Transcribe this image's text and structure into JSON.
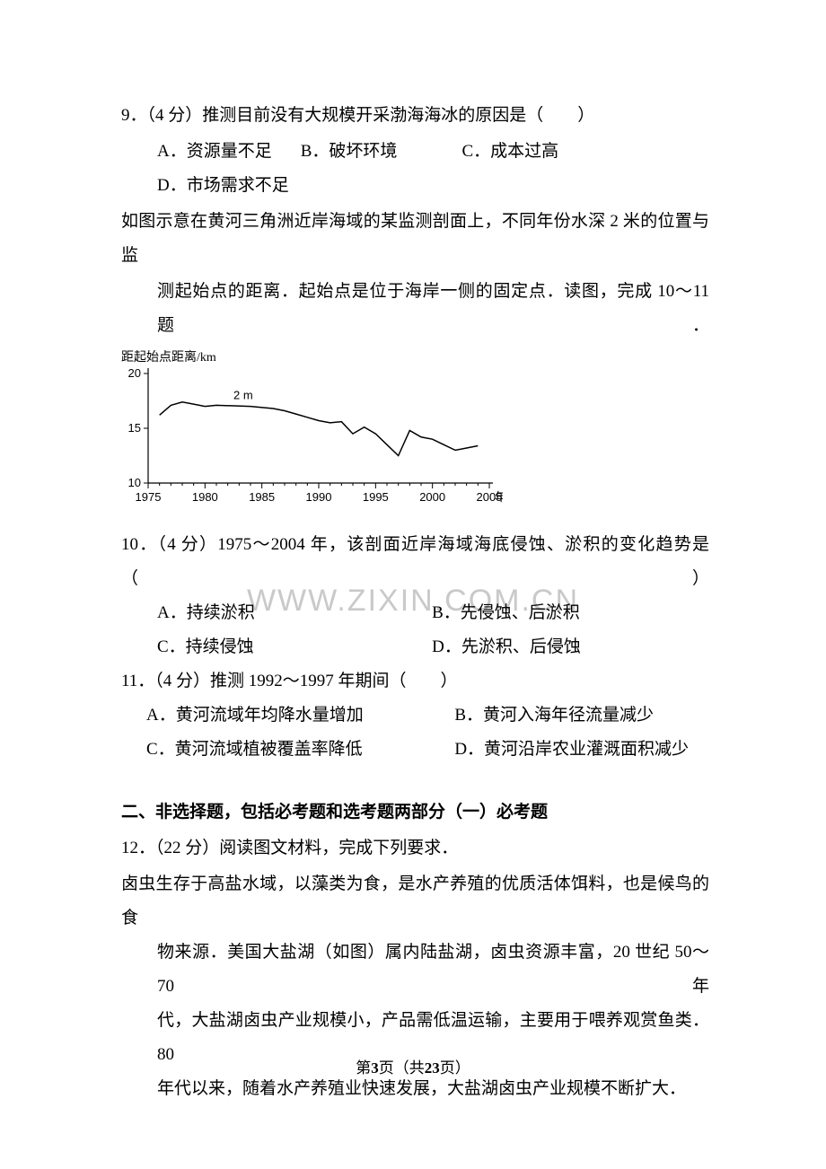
{
  "q9": {
    "stem": "9．（4 分）推测目前没有大规模开采渤海海冰的原因是（　　）",
    "opts": {
      "A": "A．资源量不足",
      "B": "B．破坏环境",
      "C": "C．成本过高",
      "D": "D．市场需求不足"
    }
  },
  "context": {
    "line1": "如图示意在黄河三角洲近岸海域的某监测剖面上，不同年份水深 2 米的位置与监",
    "line2": "测起始点的距离．起始点是位于海岸一侧的固定点．读图，完成 10～11 题．"
  },
  "chart": {
    "y_axis_title": "距起始点距离/km",
    "x_axis_title": "年",
    "ylim": [
      10,
      20
    ],
    "y_ticks": [
      10,
      15,
      20
    ],
    "xlim": [
      1975,
      2005
    ],
    "x_ticks": [
      1975,
      1980,
      1985,
      1990,
      1995,
      2000,
      2005
    ],
    "minor_tick_step": 1,
    "line_label": "2 m",
    "line_color": "#000000",
    "axis_color": "#000000",
    "tick_fontsize": 13,
    "title_fontsize": 14,
    "line_width": 1.5,
    "data": [
      {
        "x": 1976,
        "y": 16.2
      },
      {
        "x": 1977,
        "y": 17.1
      },
      {
        "x": 1978,
        "y": 17.4
      },
      {
        "x": 1979,
        "y": 17.2
      },
      {
        "x": 1980,
        "y": 17.0
      },
      {
        "x": 1981,
        "y": 17.1
      },
      {
        "x": 1984,
        "y": 17.0
      },
      {
        "x": 1986,
        "y": 16.8
      },
      {
        "x": 1987,
        "y": 16.6
      },
      {
        "x": 1988,
        "y": 16.3
      },
      {
        "x": 1989,
        "y": 16.0
      },
      {
        "x": 1990,
        "y": 15.7
      },
      {
        "x": 1991,
        "y": 15.5
      },
      {
        "x": 1992,
        "y": 15.6
      },
      {
        "x": 1993,
        "y": 14.5
      },
      {
        "x": 1994,
        "y": 15.1
      },
      {
        "x": 1995,
        "y": 14.5
      },
      {
        "x": 1996,
        "y": 13.5
      },
      {
        "x": 1997,
        "y": 12.5
      },
      {
        "x": 1998,
        "y": 14.8
      },
      {
        "x": 1999,
        "y": 14.2
      },
      {
        "x": 2000,
        "y": 14.0
      },
      {
        "x": 2001,
        "y": 13.5
      },
      {
        "x": 2002,
        "y": 13.0
      },
      {
        "x": 2003,
        "y": 13.2
      },
      {
        "x": 2004,
        "y": 13.4
      }
    ]
  },
  "q10": {
    "stem": "10．（4 分）1975～2004 年，该剖面近岸海域海底侵蚀、淤积的变化趋势是（　　）",
    "opts": {
      "A": "A．持续淤积",
      "B": "B．先侵蚀、后淤积",
      "C": "C．持续侵蚀",
      "D": "D．先淤积、后侵蚀"
    }
  },
  "q11": {
    "stem": "11．（4 分）推测 1992～1997 年期间（　　）",
    "opts": {
      "A": "A．黄河流域年均降水量增加",
      "B": "B．黄河入海年径流量减少",
      "C": "C．黄河流域植被覆盖率降低",
      "D": "D．黄河沿岸农业灌溉面积减少"
    }
  },
  "section2_title": "二、非选择题，包括必考题和选考题两部分（一）必考题",
  "q12": {
    "stem": "12．（22 分）阅读图文材料，完成下列要求．",
    "para1": "卤虫生存于高盐水域，以藻类为食，是水产养殖的优质活体饵料，也是候鸟的食",
    "para2": "物来源．美国大盐湖（如图）属内陆盐湖，卤虫资源丰富，20 世纪 50～70 年",
    "para3": "代，大盐湖卤虫产业规模小，产品需低温运输，主要用于喂养观赏鱼类．80",
    "para4": "年代以来，随着水产养殖业快速发展，大盐湖卤虫产业规模不断扩大．"
  },
  "watermark": "WWW.ZIXIN.COM.CN",
  "footer": {
    "prefix": "第",
    "page": "3",
    "mid": "页（共",
    "total": "23",
    "suffix": "页）"
  }
}
